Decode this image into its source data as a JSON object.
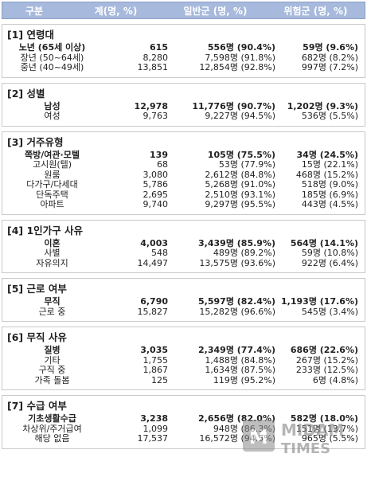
{
  "header": {
    "col0": "구분",
    "col1": "계(명, %)",
    "col2": "일반군 (명, %)",
    "col3": "위험군 (명, %)"
  },
  "sections": [
    {
      "title": "[1] 연령대",
      "rows": [
        {
          "label": "노년 (65세 이상)",
          "total": "615",
          "general": "556명 (90.4%)",
          "risk": "59명 (9.6%)",
          "bold": true
        },
        {
          "label": "장년 (50~64세)",
          "total": "8,280",
          "general": "7,598명 (91.8%)",
          "risk": "682명 (8.2%)",
          "bold": false
        },
        {
          "label": "중년 (40~49세)",
          "total": "13,851",
          "general": "12,854명 (92.8%)",
          "risk": "997명 (7.2%)",
          "bold": false
        }
      ]
    },
    {
      "title": "[2] 성별",
      "rows": [
        {
          "label": "남성",
          "total": "12,978",
          "general": "11,776명 (90.7%)",
          "risk": "1,202명 (9.3%)",
          "bold": true
        },
        {
          "label": "여성",
          "total": "9,763",
          "general": "9,227명 (94.5%)",
          "risk": "536명 (5.5%)",
          "bold": false
        }
      ]
    },
    {
      "title": "[3] 거주유형",
      "rows": [
        {
          "label": "쪽방/여관·모텔",
          "total": "139",
          "general": "105명 (75.5%)",
          "risk": "34명 (24.5%)",
          "bold": true
        },
        {
          "label": "고시원(텔)",
          "total": "68",
          "general": "53명 (77.9%)",
          "risk": "15명 (22.1%)",
          "bold": false
        },
        {
          "label": "원룸",
          "total": "3,080",
          "general": "2,612명 (84.8%)",
          "risk": "468명 (15.2%)",
          "bold": false
        },
        {
          "label": "다가구/다세대",
          "total": "5,786",
          "general": "5,268명 (91.0%)",
          "risk": "518명 (9.0%)",
          "bold": false
        },
        {
          "label": "단독주택",
          "total": "2,695",
          "general": "2,510명 (93.1%)",
          "risk": "185명 (6.9%)",
          "bold": false
        },
        {
          "label": "아파트",
          "total": "9,740",
          "general": "9,297명 (95.5%)",
          "risk": "443명 (4.5%)",
          "bold": false
        }
      ]
    },
    {
      "title": "[4] 1인가구 사유",
      "rows": [
        {
          "label": "이혼",
          "total": "4,003",
          "general": "3,439명 (85.9%)",
          "risk": "564명 (14.1%)",
          "bold": true
        },
        {
          "label": "사별",
          "total": "548",
          "general": "489명 (89.2%)",
          "risk": "59명 (10.8%)",
          "bold": false
        },
        {
          "label": "자유의지",
          "total": "14,497",
          "general": "13,575명 (93.6%)",
          "risk": "922명 (6.4%)",
          "bold": false
        }
      ]
    },
    {
      "title": "[5] 근로 여부",
      "rows": [
        {
          "label": "무직",
          "total": "6,790",
          "general": "5,597명 (82.4%)",
          "risk": "1,193명 (17.6%)",
          "bold": true
        },
        {
          "label": "근로 중",
          "total": "15,827",
          "general": "15,282명 (96.6%)",
          "risk": "545명 (3.4%)",
          "bold": false
        }
      ]
    },
    {
      "title": "[6] 무직 사유",
      "rows": [
        {
          "label": "질병",
          "total": "3,035",
          "general": "2,349명 (77.4%)",
          "risk": "686명 (22.6%)",
          "bold": true
        },
        {
          "label": "기타",
          "total": "1,755",
          "general": "1,488명 (84.8%)",
          "risk": "267명 (15.2%)",
          "bold": false
        },
        {
          "label": "구직 중",
          "total": "1,867",
          "general": "1,634명 (87.5%)",
          "risk": "233명 (12.5%)",
          "bold": false
        },
        {
          "label": "가족 돌봄",
          "total": "125",
          "general": "119명 (95.2%)",
          "risk": "6명 (4.8%)",
          "bold": false
        }
      ]
    },
    {
      "title": "[7] 수급 여부",
      "rows": [
        {
          "label": "기초생활수급",
          "total": "3,238",
          "general": "2,656명 (82.0%)",
          "risk": "582명 (18.0%)",
          "bold": true
        },
        {
          "label": "차상위/주거급여",
          "total": "1,099",
          "general": "948명 (86.3%)",
          "risk": "151명 (13.7%)",
          "bold": false
        },
        {
          "label": "해당 없음",
          "total": "17,537",
          "general": "16,572명 (94.5%)",
          "risk": "965명 (5.5%)",
          "bold": false
        }
      ]
    }
  ],
  "watermark": {
    "brand": "MIDAM",
    "sub": "TIMES"
  }
}
